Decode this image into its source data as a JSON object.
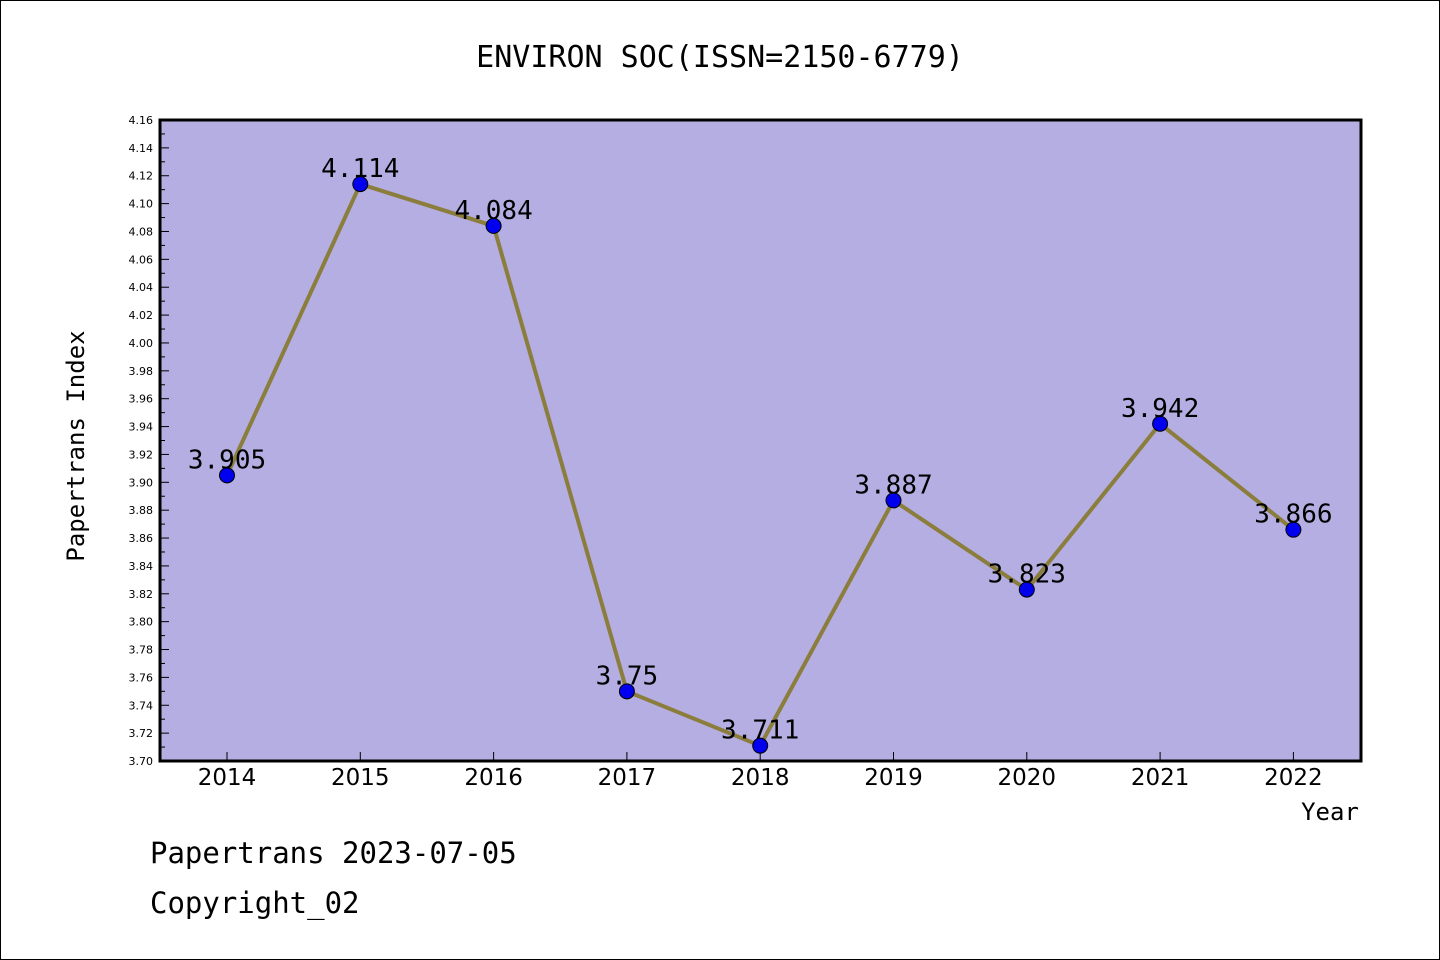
{
  "chart_data": {
    "type": "line",
    "title": "ENVIRON SOC(ISSN=2150-6779)",
    "xlabel": "Year",
    "ylabel": "Papertrans Index",
    "categories": [
      "2014",
      "2015",
      "2016",
      "2017",
      "2018",
      "2019",
      "2020",
      "2021",
      "2022"
    ],
    "values": [
      3.905,
      4.114,
      4.084,
      3.75,
      3.711,
      3.887,
      3.823,
      3.942,
      3.866
    ],
    "value_labels": [
      "3.905",
      "4.114",
      "4.084",
      "3.75",
      "3.711",
      "3.887",
      "3.823",
      "3.942",
      "3.866"
    ],
    "ylim": [
      3.7,
      4.16
    ],
    "yticks": [
      "3.70",
      "3.72",
      "3.74",
      "3.76",
      "3.78",
      "3.80",
      "3.82",
      "3.84",
      "3.86",
      "3.88",
      "3.90",
      "3.92",
      "3.94",
      "3.96",
      "3.98",
      "4.00",
      "4.02",
      "4.04",
      "4.06",
      "4.08",
      "4.10",
      "4.12",
      "4.14",
      "4.16"
    ],
    "grid": false,
    "colors": {
      "plot_background": "#b4aee2",
      "line": "#8b7d3c",
      "marker": "#0000ee"
    }
  },
  "footer": {
    "line1": "Papertrans 2023-07-05",
    "line2": "Copyright_02"
  }
}
